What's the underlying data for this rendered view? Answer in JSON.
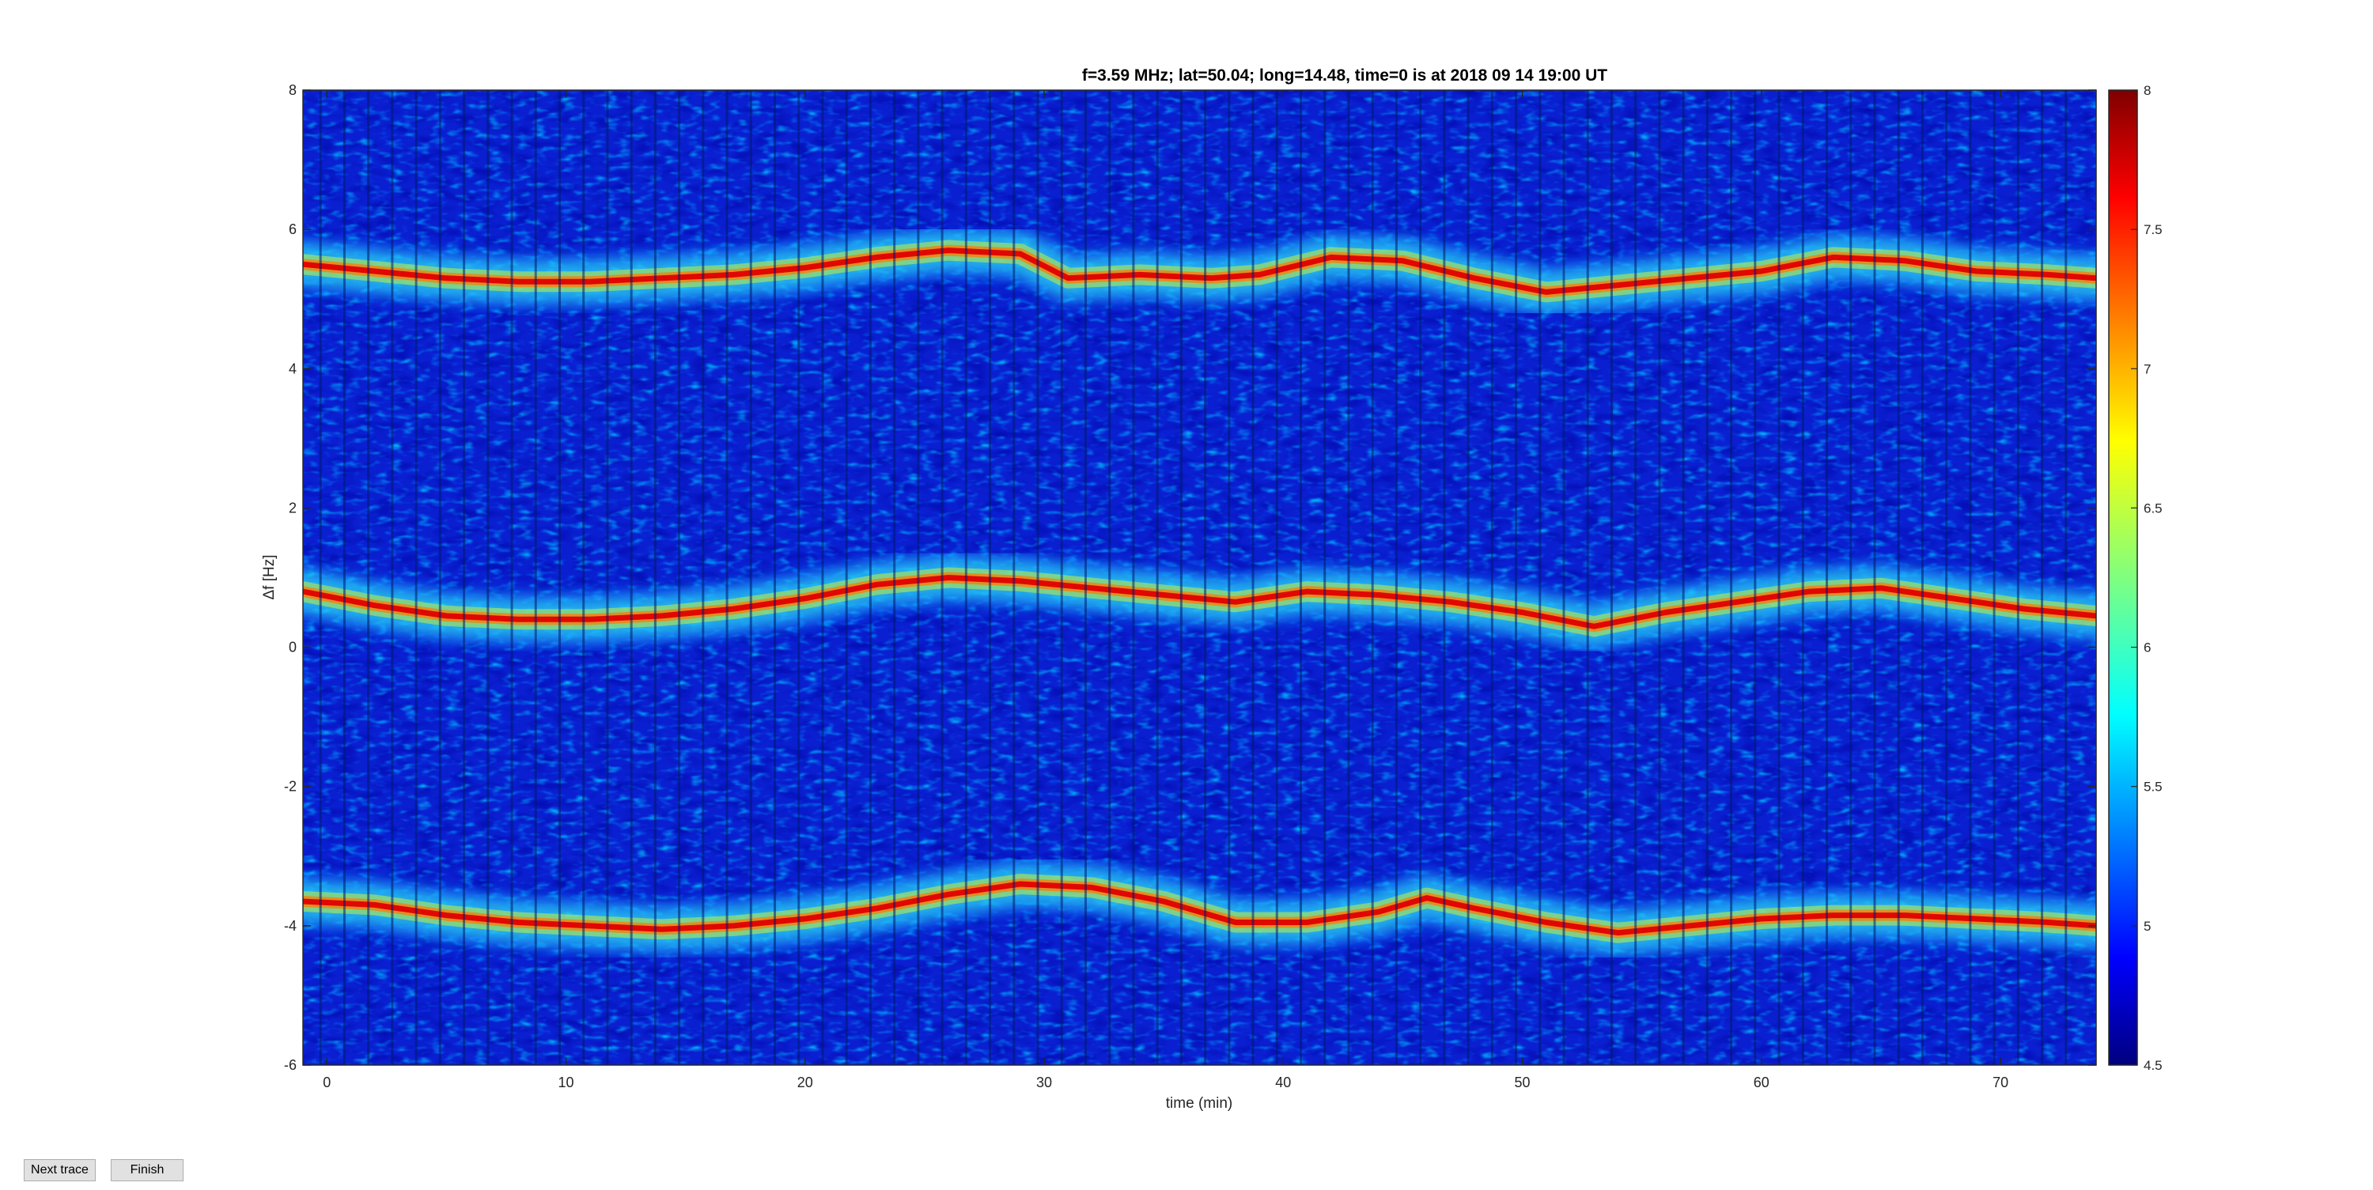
{
  "chart_data": {
    "type": "heatmap",
    "title": "f=3.59 MHz;  lat=50.04; long=14.48, time=0 is at 2018 09 14 19:00 UT",
    "xlabel": "time (min)",
    "ylabel": "Δf [Hz]",
    "xlim": [
      -1,
      74
    ],
    "ylim": [
      -6,
      8
    ],
    "xticks": [
      0,
      10,
      20,
      30,
      40,
      50,
      60,
      70
    ],
    "yticks": [
      -6,
      -4,
      -2,
      0,
      2,
      4,
      6,
      8
    ],
    "colorbar": {
      "colormap": "jet",
      "clim": [
        4.5,
        8
      ],
      "ticks": [
        4.5,
        5,
        5.5,
        6,
        6.5,
        7,
        7.5,
        8
      ]
    },
    "traces": [
      {
        "x": [
          -1,
          2,
          5,
          8,
          11,
          14,
          17,
          20,
          23,
          26,
          29,
          31,
          34,
          37,
          39,
          42,
          45,
          48,
          51,
          54,
          57,
          60,
          63,
          66,
          69,
          72,
          74
        ],
        "y": [
          5.5,
          5.4,
          5.3,
          5.25,
          5.25,
          5.3,
          5.35,
          5.45,
          5.6,
          5.7,
          5.65,
          5.3,
          5.35,
          5.3,
          5.35,
          5.6,
          5.55,
          5.3,
          5.1,
          5.2,
          5.3,
          5.4,
          5.6,
          5.55,
          5.4,
          5.35,
          5.3
        ]
      },
      {
        "x": [
          -1,
          2,
          5,
          8,
          11,
          14,
          17,
          20,
          23,
          26,
          29,
          32,
          35,
          38,
          41,
          44,
          47,
          50,
          53,
          56,
          59,
          62,
          65,
          68,
          71,
          74
        ],
        "y": [
          0.8,
          0.6,
          0.45,
          0.4,
          0.4,
          0.45,
          0.55,
          0.7,
          0.9,
          1.0,
          0.95,
          0.85,
          0.75,
          0.65,
          0.8,
          0.75,
          0.65,
          0.5,
          0.3,
          0.5,
          0.65,
          0.8,
          0.85,
          0.7,
          0.55,
          0.45
        ]
      },
      {
        "x": [
          -1,
          2,
          5,
          8,
          11,
          14,
          17,
          20,
          23,
          26,
          29,
          32,
          35,
          38,
          41,
          44,
          46,
          48,
          51,
          54,
          57,
          60,
          63,
          66,
          69,
          72,
          74
        ],
        "y": [
          -3.65,
          -3.7,
          -3.85,
          -3.95,
          -4.0,
          -4.05,
          -4.0,
          -3.9,
          -3.75,
          -3.55,
          -3.4,
          -3.45,
          -3.65,
          -3.95,
          -3.95,
          -3.8,
          -3.6,
          -3.75,
          -3.95,
          -4.1,
          -4.0,
          -3.9,
          -3.85,
          -3.85,
          -3.9,
          -3.95,
          -4.0
        ]
      }
    ]
  },
  "buttons": {
    "next_trace": "Next trace",
    "finish": "Finish"
  }
}
